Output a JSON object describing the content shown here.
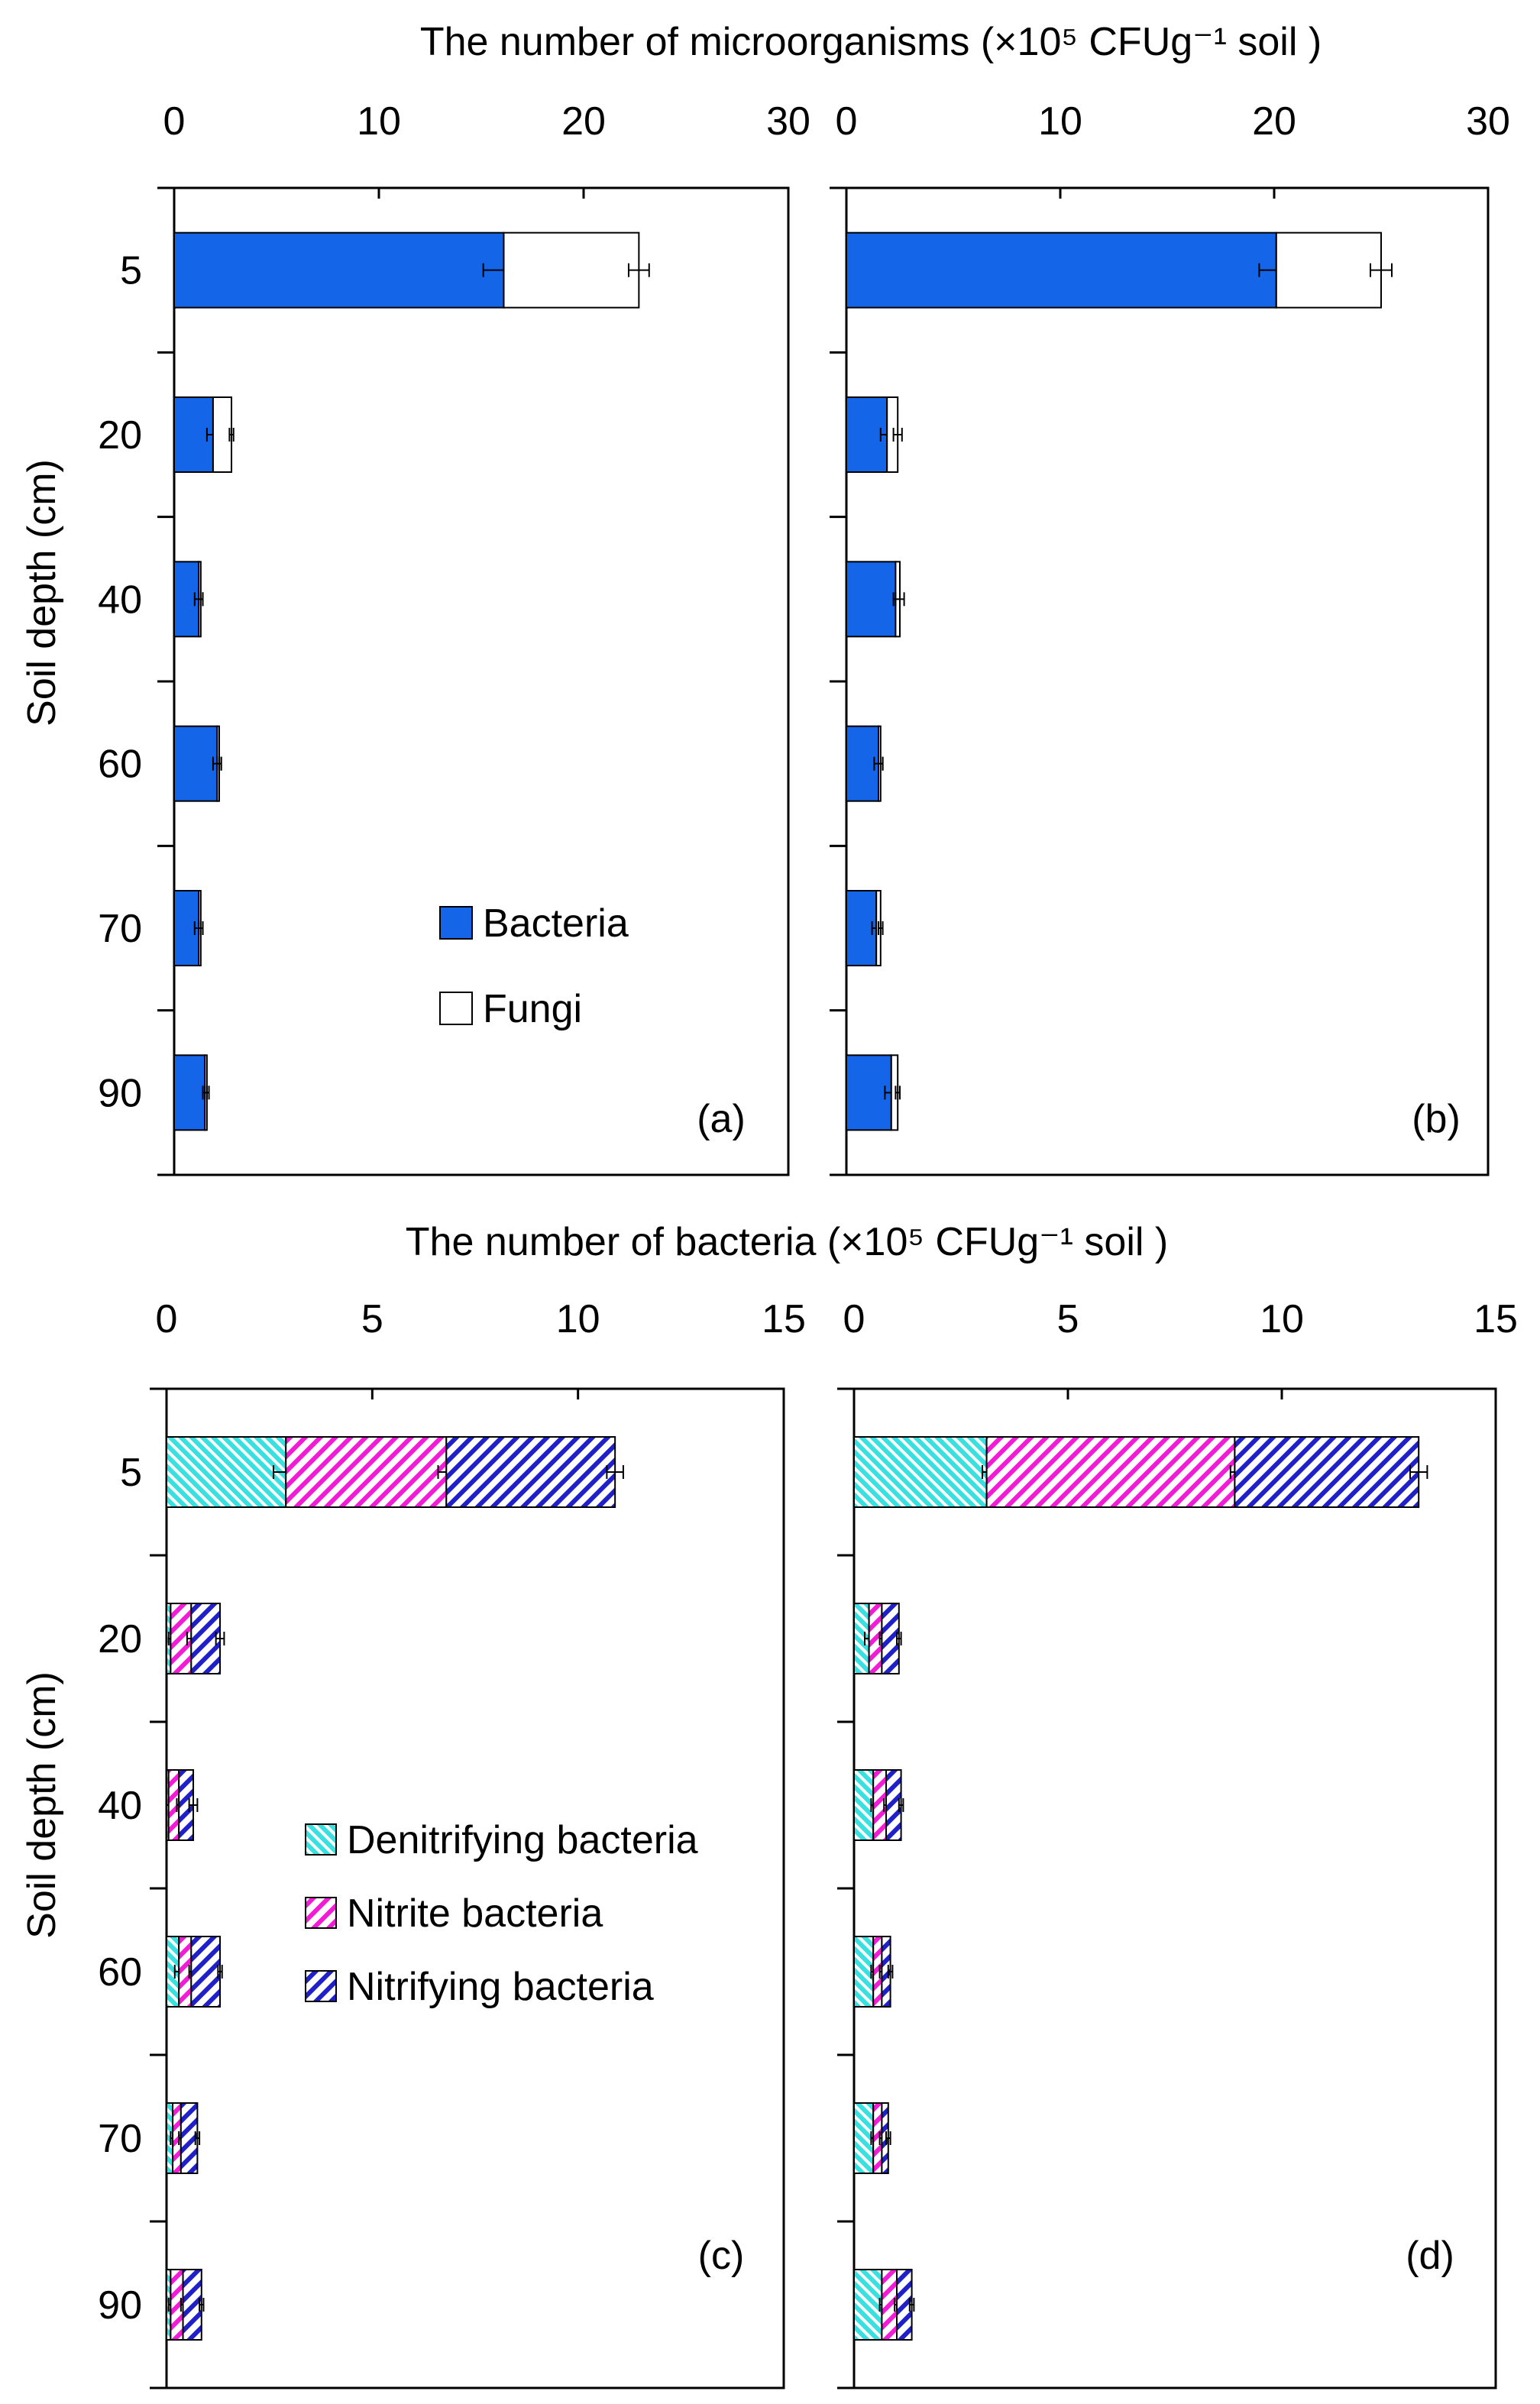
{
  "top_title": "The number of microorganisms (×10⁵ CFUg⁻¹ soil )",
  "bottom_title": "The number of bacteria (×10⁵ CFUg⁻¹ soil )",
  "y_axis_label": "Soil depth (cm)",
  "colors": {
    "bacteria": "#1565E8",
    "fungi": "#FFFFFF",
    "denitrifying": "#39E0E0",
    "nitrite": "#F21BD6",
    "nitrifying": "#2020C8"
  },
  "legend_top": [
    {
      "label": "Bacteria",
      "key": "bacteria"
    },
    {
      "label": "Fungi",
      "key": "fungi"
    }
  ],
  "legend_bottom": [
    {
      "label": "Denitrifying bacteria",
      "key": "denitrifying"
    },
    {
      "label": "Nitrite bacteria",
      "key": "nitrite"
    },
    {
      "label": "Nitrifying bacteria",
      "key": "nitrifying"
    }
  ],
  "chart_data": [
    {
      "type": "bar",
      "orientation": "horizontal",
      "stacked": true,
      "panel_label": "(a)",
      "categories": [
        "5",
        "20",
        "40",
        "60",
        "70",
        "90"
      ],
      "xlim": [
        0,
        30
      ],
      "xticks": [
        0,
        10,
        20,
        30
      ],
      "series": [
        {
          "name": "Bacteria",
          "key": "bacteria",
          "values": [
            16.1,
            1.9,
            1.2,
            2.1,
            1.2,
            1.5
          ],
          "errors": [
            1.0,
            0.3,
            0.2,
            0.2,
            0.2,
            0.1
          ]
        },
        {
          "name": "Fungi",
          "key": "fungi",
          "values": [
            6.6,
            0.9,
            0.1,
            0.1,
            0.1,
            0.1
          ],
          "errors": [
            0.5,
            0.1,
            0.1,
            0.1,
            0.1,
            0.1
          ]
        }
      ]
    },
    {
      "type": "bar",
      "orientation": "horizontal",
      "stacked": true,
      "panel_label": "(b)",
      "categories": [
        "5",
        "20",
        "40",
        "60",
        "70",
        "90"
      ],
      "xlim": [
        0,
        30
      ],
      "xticks": [
        0,
        10,
        20,
        30
      ],
      "series": [
        {
          "name": "Bacteria",
          "key": "bacteria",
          "values": [
            20.1,
            1.9,
            2.3,
            1.5,
            1.4,
            2.1
          ],
          "errors": [
            0.8,
            0.3,
            0.1,
            0.2,
            0.2,
            0.3
          ]
        },
        {
          "name": "Fungi",
          "key": "fungi",
          "values": [
            4.9,
            0.5,
            0.2,
            0.1,
            0.2,
            0.3
          ],
          "errors": [
            0.5,
            0.2,
            0.2,
            0.1,
            0.1,
            0.1
          ]
        }
      ]
    },
    {
      "type": "bar",
      "orientation": "horizontal",
      "stacked": true,
      "panel_label": "(c)",
      "categories": [
        "5",
        "20",
        "40",
        "60",
        "70",
        "90"
      ],
      "xlim": [
        0,
        15
      ],
      "xticks": [
        0,
        5,
        10,
        15
      ],
      "series": [
        {
          "name": "Denitrifying bacteria",
          "key": "denitrifying",
          "values": [
            2.9,
            0.1,
            0.05,
            0.3,
            0.15,
            0.1
          ],
          "errors": [
            0.3,
            0.05,
            0.05,
            0.1,
            0.05,
            0.05
          ]
        },
        {
          "name": "Nitrite bacteria",
          "key": "nitrite",
          "values": [
            3.9,
            0.5,
            0.25,
            0.3,
            0.2,
            0.3
          ],
          "errors": [
            0.2,
            0.1,
            0.05,
            0.05,
            0.05,
            0.05
          ]
        },
        {
          "name": "Nitrifying bacteria",
          "key": "nitrifying",
          "values": [
            4.1,
            0.7,
            0.35,
            0.7,
            0.4,
            0.45
          ],
          "errors": [
            0.2,
            0.1,
            0.1,
            0.05,
            0.05,
            0.05
          ]
        }
      ]
    },
    {
      "type": "bar",
      "orientation": "horizontal",
      "stacked": true,
      "panel_label": "(d)",
      "categories": [
        "5",
        "20",
        "40",
        "60",
        "70",
        "90"
      ],
      "xlim": [
        0,
        15
      ],
      "xticks": [
        0,
        5,
        10,
        15
      ],
      "series": [
        {
          "name": "Denitrifying bacteria",
          "key": "denitrifying",
          "values": [
            3.1,
            0.35,
            0.45,
            0.45,
            0.45,
            0.65
          ],
          "errors": [
            0.1,
            0.1,
            0.05,
            0.05,
            0.05,
            0.05
          ]
        },
        {
          "name": "Nitrite bacteria",
          "key": "nitrite",
          "values": [
            5.8,
            0.3,
            0.3,
            0.2,
            0.2,
            0.35
          ],
          "errors": [
            0.1,
            0.05,
            0.05,
            0.05,
            0.05,
            0.05
          ]
        },
        {
          "name": "Nitrifying bacteria",
          "key": "nitrifying",
          "values": [
            4.3,
            0.4,
            0.35,
            0.2,
            0.15,
            0.35
          ],
          "errors": [
            0.2,
            0.05,
            0.05,
            0.05,
            0.05,
            0.05
          ]
        }
      ]
    }
  ]
}
